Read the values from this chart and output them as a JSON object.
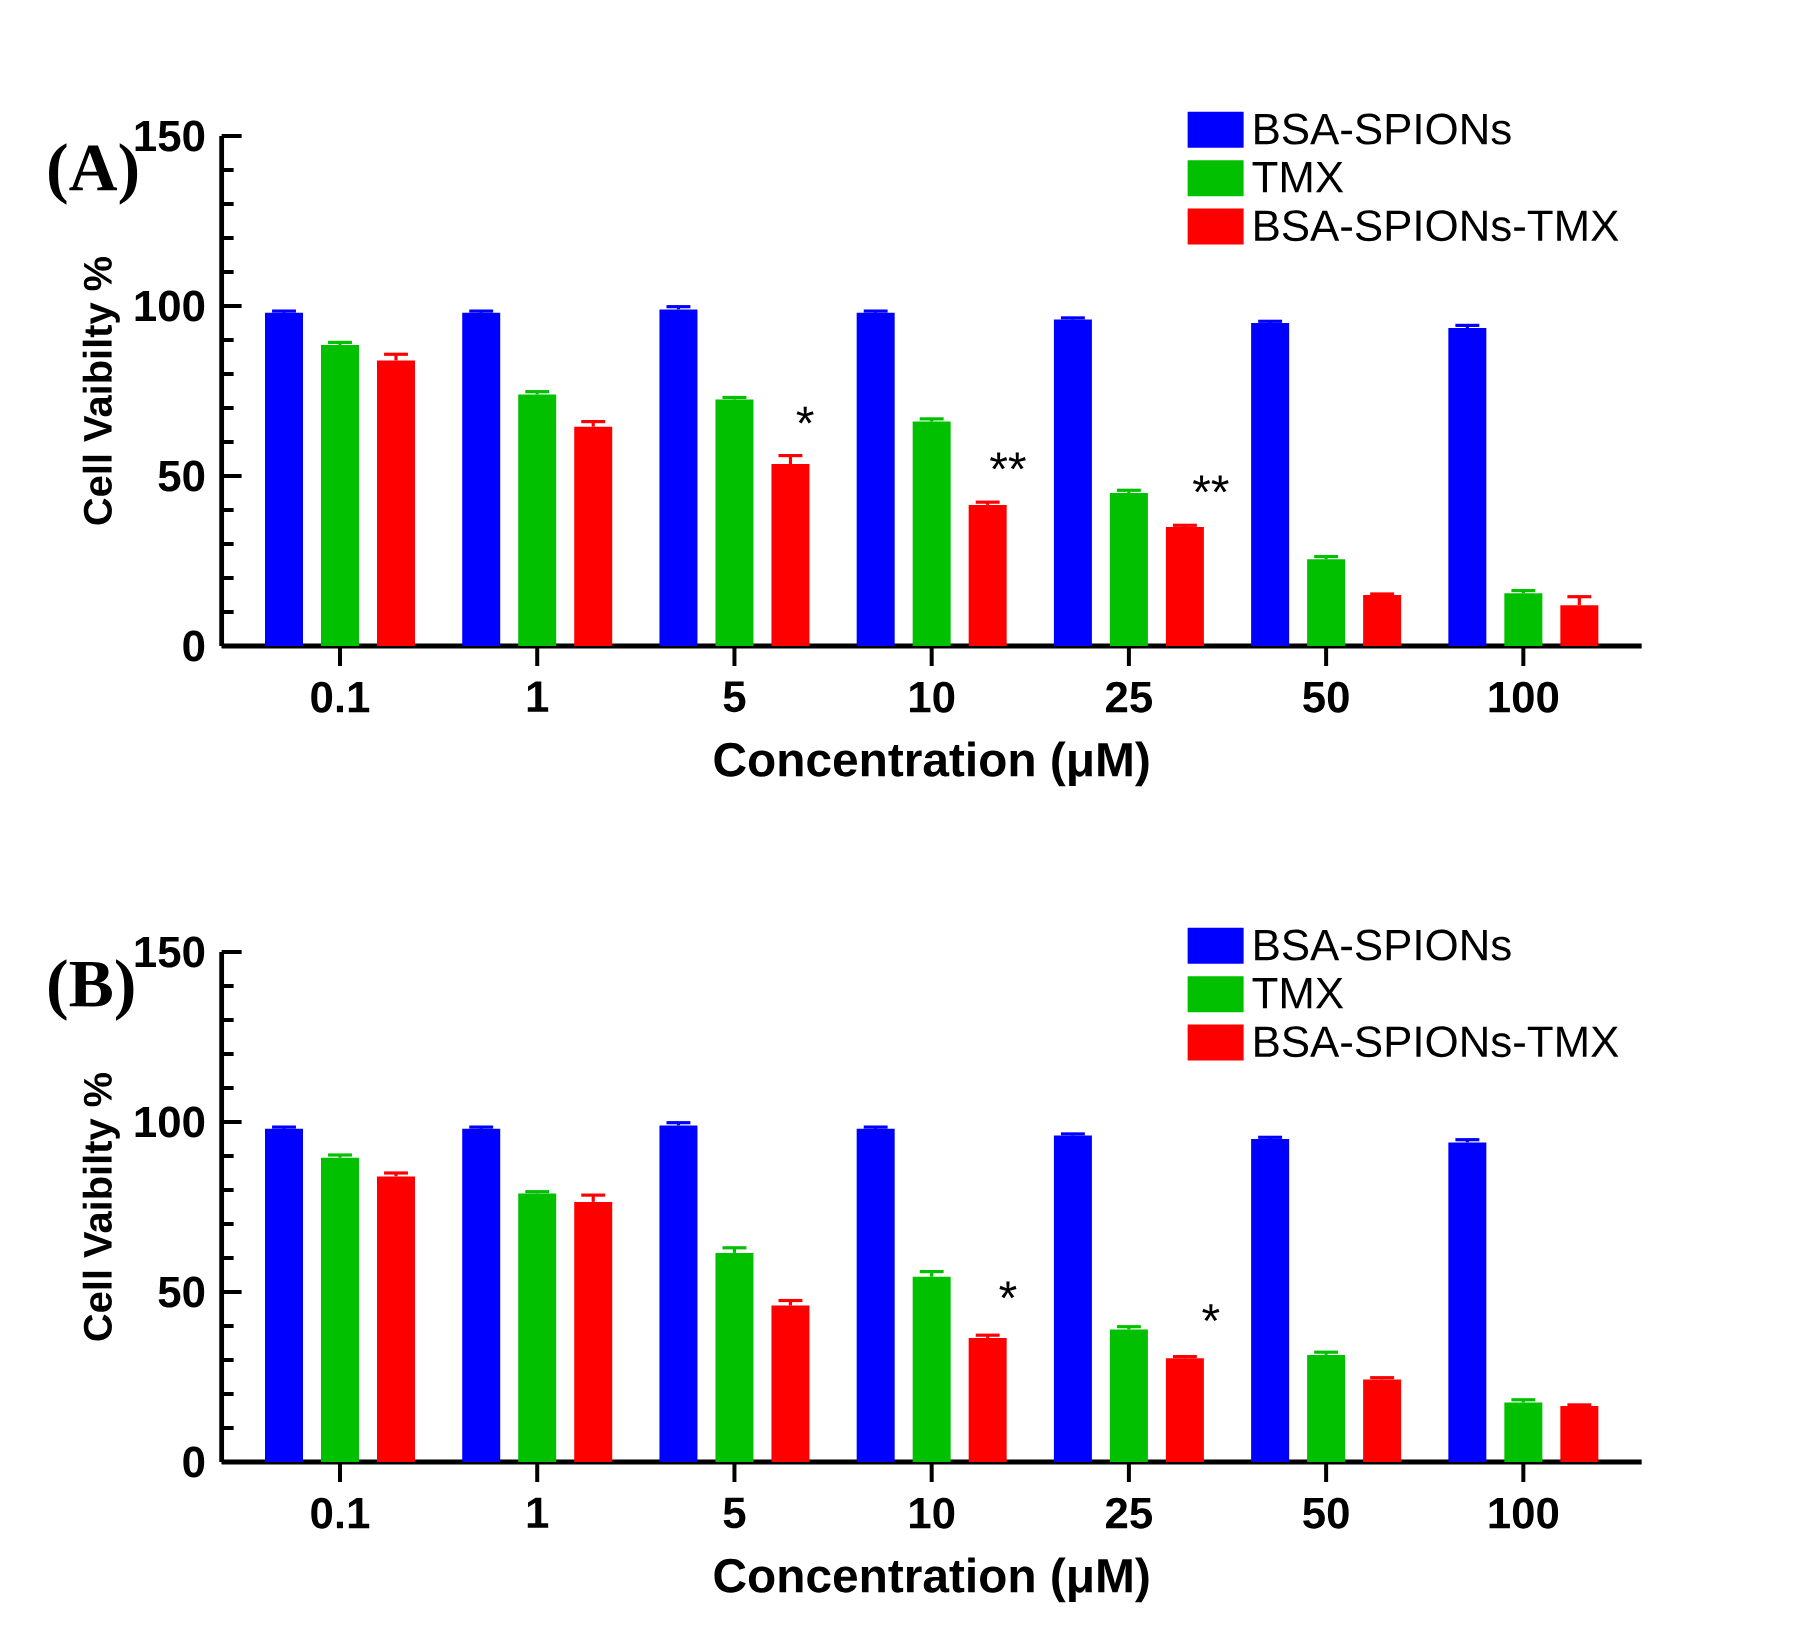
{
  "chart_data": [
    {
      "type": "bar",
      "title": "(A)",
      "xlabel": "Concentration (μM)",
      "ylabel": "Cell Vaibilty %",
      "categories": [
        "0.1",
        "1",
        "5",
        "10",
        "25",
        "50",
        "100"
      ],
      "ylim": [
        0,
        150
      ],
      "yticks": [
        0,
        50,
        100,
        150
      ],
      "legend": "top right",
      "series": [
        {
          "name": "BSA-SPIONs",
          "color": "#0000ff",
          "values": [
            98,
            98,
            99,
            98,
            96,
            95,
            93.5
          ],
          "errors": [
            0.5,
            0.5,
            0.8,
            0.5,
            0.5,
            0.5,
            0.8
          ]
        },
        {
          "name": "TMX",
          "color": "#00c000",
          "values": [
            88.5,
            74,
            72.5,
            66,
            45,
            25.5,
            15.5
          ],
          "errors": [
            0.8,
            0.8,
            0.6,
            0.8,
            0.8,
            0.8,
            0.8
          ]
        },
        {
          "name": "BSA-SPIONs-TMX",
          "color": "#ff0000",
          "values": [
            84,
            64.5,
            53.5,
            41.5,
            35,
            15,
            12
          ],
          "errors": [
            1.8,
            1.5,
            2.5,
            0.8,
            0.5,
            0.3,
            2.5
          ]
        }
      ],
      "annotations": [
        "*",
        "**",
        "**"
      ]
    },
    {
      "type": "bar",
      "title": "(B)",
      "xlabel": "Concentration (μM)",
      "ylabel": "Cell Vaibilty %",
      "categories": [
        "0.1",
        "1",
        "5",
        "10",
        "25",
        "50",
        "100"
      ],
      "ylim": [
        0,
        150
      ],
      "yticks": [
        0,
        50,
        100,
        150
      ],
      "legend": "top right",
      "series": [
        {
          "name": "BSA-SPIONs",
          "color": "#0000ff",
          "values": [
            98,
            98,
            99,
            98,
            96,
            95,
            94
          ],
          "errors": [
            0.5,
            0.5,
            0.8,
            0.5,
            0.5,
            0.5,
            0.8
          ]
        },
        {
          "name": "TMX",
          "color": "#00c000",
          "values": [
            89.5,
            79,
            61.5,
            54.5,
            39,
            31.5,
            17.5
          ],
          "errors": [
            0.8,
            0.5,
            1.5,
            1.5,
            0.8,
            0.8,
            0.8
          ]
        },
        {
          "name": "BSA-SPIONs-TMX",
          "color": "#ff0000",
          "values": [
            84,
            76.5,
            46,
            36.5,
            30.5,
            24.3,
            16.5
          ],
          "errors": [
            1,
            2,
            1.5,
            0.8,
            0.5,
            0.5,
            0.3
          ]
        }
      ],
      "annotations": [
        "*",
        "*"
      ]
    }
  ]
}
